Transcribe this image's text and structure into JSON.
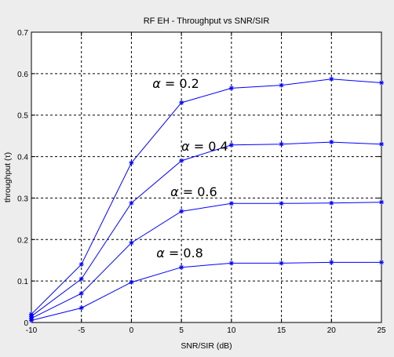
{
  "chart_data": {
    "type": "line",
    "title": "RF EH - Throughput vs SNR/SIR",
    "xlabel": "SNR/SIR (dB)",
    "ylabel": "throughput  (τ)",
    "xlim": [
      -10,
      25
    ],
    "ylim": [
      0,
      0.7
    ],
    "xticks": [
      "-10",
      "-5",
      "0",
      "5",
      "10",
      "15",
      "20",
      "25"
    ],
    "yticks": [
      "0",
      "0.1",
      "0.2",
      "0.3",
      "0.4",
      "0.5",
      "0.6",
      "0.7"
    ],
    "xtick_values": [
      -10,
      -5,
      0,
      5,
      10,
      15,
      20,
      25
    ],
    "ytick_values": [
      0,
      0.1,
      0.2,
      0.3,
      0.4,
      0.5,
      0.6,
      0.7
    ],
    "grid": true,
    "x": [
      -10,
      -5,
      0,
      5,
      10,
      15,
      20,
      25
    ],
    "series": [
      {
        "name": "α = 0.2",
        "values": [
          0.02,
          0.14,
          0.385,
          0.53,
          0.565,
          0.572,
          0.587,
          0.578
        ]
      },
      {
        "name": "α = 0.4",
        "values": [
          0.015,
          0.105,
          0.288,
          0.39,
          0.428,
          0.43,
          0.435,
          0.43
        ]
      },
      {
        "name": "α = 0.6",
        "values": [
          0.01,
          0.07,
          0.192,
          0.268,
          0.287,
          0.287,
          0.288,
          0.29
        ]
      },
      {
        "name": "α = 0.8",
        "values": [
          0.005,
          0.035,
          0.097,
          0.133,
          0.143,
          0.143,
          0.145,
          0.145
        ]
      }
    ],
    "annotations": [
      {
        "greek": "α",
        "rest": " = 0.2",
        "x": 2.1,
        "y": 0.566
      },
      {
        "greek": "α",
        "rest": " = 0.4",
        "x": 5.0,
        "y": 0.414
      },
      {
        "greek": "α",
        "rest": " = 0.6",
        "x": 3.9,
        "y": 0.305
      },
      {
        "greek": "α",
        "rest": " = 0.8",
        "x": 2.5,
        "y": 0.157
      }
    ],
    "line_color": "#0000ff"
  }
}
